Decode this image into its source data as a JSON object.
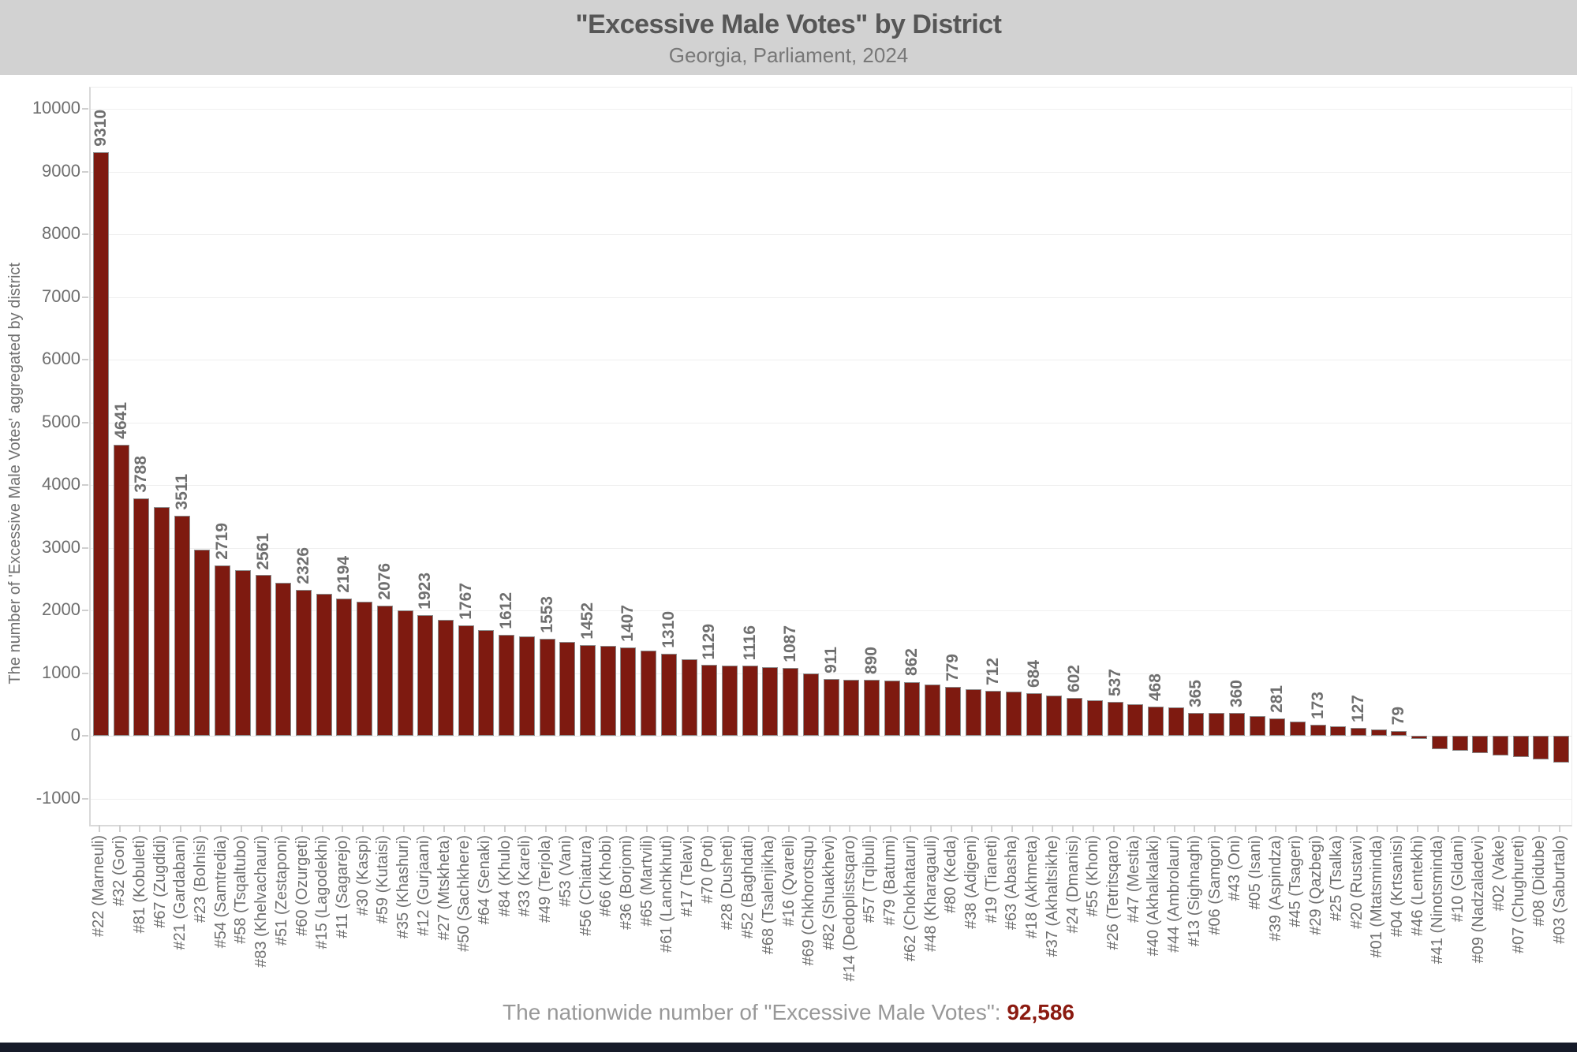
{
  "header": {
    "title": "\"Excessive Male Votes\" by District",
    "subtitle": "Georgia, Parliament, 2024"
  },
  "footer": {
    "annotation_prefix": "The nationwide number of \"Excessive Male Votes\": ",
    "annotation_value": "92,586"
  },
  "colors": {
    "header_bg": "#d2d2d2",
    "bar_fill": "#7e1a10",
    "bar_stroke": "#8c8c8c",
    "accent_red": "#8b1a10",
    "text_gray": "#6f6f6f"
  },
  "chart_data": {
    "type": "bar",
    "title": "\"Excessive Male Votes\" by District",
    "subtitle": "Georgia, Parliament, 2024",
    "xlabel": "",
    "ylabel": "The number of 'Excessive Male Votes' aggregated by district",
    "ylim": [
      -1000,
      10000
    ],
    "yticks": [
      10000,
      9000,
      8000,
      7000,
      6000,
      5000,
      4000,
      3000,
      2000,
      1000,
      0,
      -1000
    ],
    "grid": "horizontal",
    "legend": "none",
    "categories": [
      "#22 (Marneuli)",
      "#32 (Gori)",
      "#81 (Kobuleti)",
      "#67 (Zugdidi)",
      "#21 (Gardabani)",
      "#23 (Bolnisi)",
      "#54 (Samtredia)",
      "#58 (Tsqaltubo)",
      "#83 (Khelvachauri)",
      "#51 (Zestaponi)",
      "#60 (Ozurgeti)",
      "#15 (Lagodekhi)",
      "#11 (Sagarejo)",
      "#30 (Kaspi)",
      "#59 (Kutaisi)",
      "#35 (Khashuri)",
      "#12 (Gurjaani)",
      "#27 (Mtskheta)",
      "#50 (Sachkhere)",
      "#64 (Senaki)",
      "#84 (Khulo)",
      "#33 (Kareli)",
      "#49 (Terjola)",
      "#53 (Vani)",
      "#56 (Chiatura)",
      "#66 (Khobi)",
      "#36 (Borjomi)",
      "#65 (Martvili)",
      "#61 (Lanchkhuti)",
      "#17 (Telavi)",
      "#70 (Poti)",
      "#28 (Dusheti)",
      "#52 (Baghdati)",
      "#68 (Tsalenjikha)",
      "#16 (Qvareli)",
      "#69 (Chkhorotsqu)",
      "#82 (Shuakhevi)",
      "#14 (Dedoplistsqaro)",
      "#57 (Tqibuli)",
      "#79 (Batumi)",
      "#62 (Chokhatauri)",
      "#48 (Kharagauli)",
      "#80 (Keda)",
      "#38 (Adigeni)",
      "#19 (Tianeti)",
      "#63 (Abasha)",
      "#18 (Akhmeta)",
      "#37 (Akhaltsikhe)",
      "#24 (Dmanisi)",
      "#55 (Khoni)",
      "#26 (Tetritsqaro)",
      "#47 (Mestia)",
      "#40 (Akhalkalaki)",
      "#44 (Ambrolauri)",
      "#13 (Sighnaghi)",
      "#06 (Samgori)",
      "#43 (Oni)",
      "#05 (Isani)",
      "#39 (Aspindza)",
      "#45 (Tsageri)",
      "#29 (Qazbegi)",
      "#25 (Tsalka)",
      "#20 (Rustavi)",
      "#01 (Mtatsminda)",
      "#04 (Krtsanisi)",
      "#46 (Lentekhi)",
      "#41 (Ninotsminda)",
      "#10 (Gldani)",
      "#09 (Nadzaladevi)",
      "#02 (Vake)",
      "#07 (Chughureti)",
      "#08 (Didube)",
      "#03 (Saburtalo)"
    ],
    "values": [
      9310,
      4641,
      3788,
      3650,
      3511,
      2970,
      2719,
      2640,
      2561,
      2440,
      2326,
      2260,
      2194,
      2135,
      2076,
      2000,
      1923,
      1845,
      1767,
      1690,
      1612,
      1580,
      1553,
      1500,
      1452,
      1430,
      1407,
      1360,
      1310,
      1220,
      1129,
      1120,
      1116,
      1100,
      1087,
      1000,
      911,
      900,
      890,
      875,
      862,
      820,
      779,
      745,
      712,
      700,
      684,
      645,
      602,
      570,
      537,
      500,
      468,
      450,
      365,
      362,
      360,
      310,
      281,
      225,
      173,
      150,
      127,
      100,
      79,
      -50,
      -210,
      -240,
      -270,
      -320,
      -335,
      -375,
      -430
    ],
    "value_label_shown": [
      true,
      true,
      true,
      false,
      true,
      false,
      true,
      false,
      true,
      false,
      true,
      false,
      true,
      false,
      true,
      false,
      true,
      false,
      true,
      false,
      true,
      false,
      true,
      false,
      true,
      false,
      true,
      false,
      true,
      false,
      true,
      false,
      true,
      false,
      true,
      false,
      true,
      false,
      true,
      false,
      true,
      false,
      true,
      false,
      true,
      false,
      true,
      false,
      true,
      false,
      true,
      false,
      true,
      false,
      true,
      false,
      true,
      false,
      true,
      false,
      true,
      false,
      true,
      false,
      true,
      false,
      false,
      false,
      false,
      false,
      false,
      false,
      false
    ]
  }
}
